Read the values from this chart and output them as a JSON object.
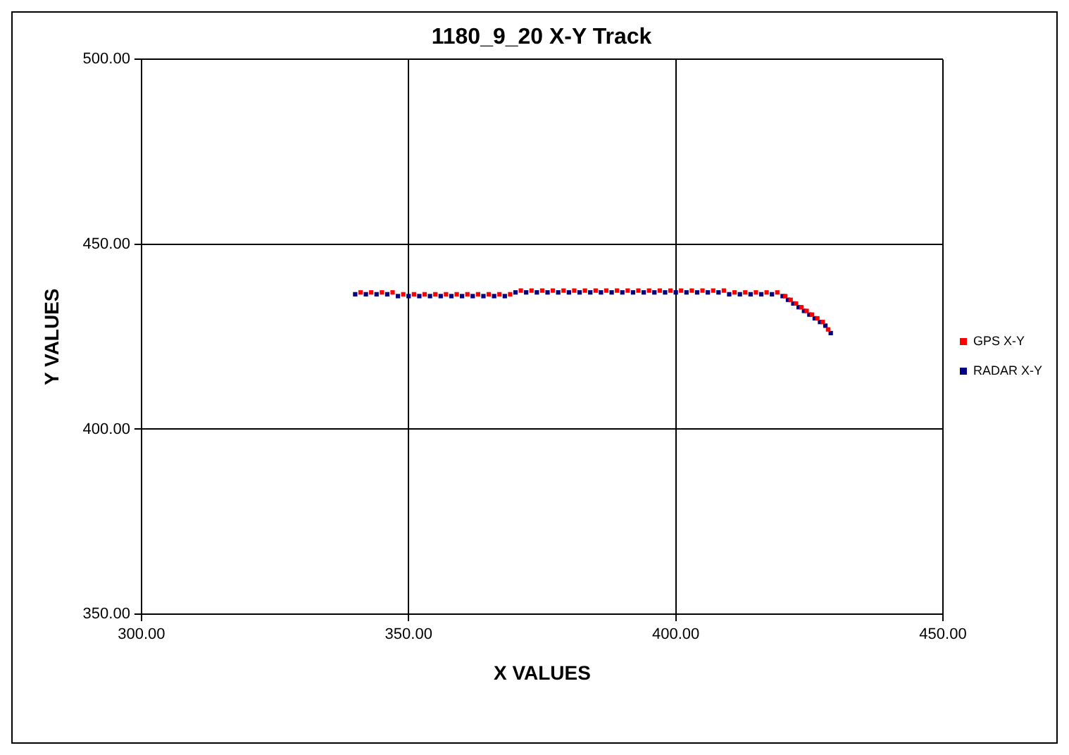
{
  "chart_data": {
    "type": "scatter",
    "title": "1180_9_20 X-Y Track",
    "xlabel": "X VALUES",
    "ylabel": "Y VALUES",
    "xlim": [
      300,
      450
    ],
    "ylim": [
      350,
      500
    ],
    "xticks": [
      {
        "value": 300,
        "label": "300.00"
      },
      {
        "value": 350,
        "label": "350.00"
      },
      {
        "value": 400,
        "label": "400.00"
      },
      {
        "value": 450,
        "label": "450.00"
      }
    ],
    "yticks": [
      {
        "value": 350,
        "label": "350.00"
      },
      {
        "value": 400,
        "label": "400.00"
      },
      {
        "value": 450,
        "label": "450.00"
      },
      {
        "value": 500,
        "label": "500.00"
      }
    ],
    "grid": true,
    "legend": "right",
    "marker": "square",
    "series": [
      {
        "name": "RADAR X-Y",
        "color": "#000080",
        "x": [
          340,
          342,
          344,
          346,
          348,
          350,
          352,
          354,
          356,
          358,
          360,
          362,
          364,
          366,
          368,
          370,
          372,
          374,
          376,
          378,
          380,
          382,
          384,
          386,
          388,
          390,
          392,
          394,
          396,
          398,
          400,
          402,
          404,
          406,
          408,
          410,
          412,
          414,
          416,
          418,
          420,
          421,
          422,
          423,
          424,
          425,
          426,
          427,
          428,
          429
        ],
        "values": [
          436.5,
          436.5,
          436.5,
          436.5,
          436,
          436,
          436,
          436,
          436,
          436,
          436,
          436,
          436,
          436,
          436,
          437,
          437,
          437,
          437,
          437,
          437,
          437,
          437,
          437,
          437,
          437,
          437,
          437,
          437,
          437,
          437,
          437,
          437,
          437,
          437,
          436.5,
          436.5,
          436.5,
          436.5,
          436.5,
          436,
          435,
          434,
          433,
          432,
          431,
          430,
          429,
          428,
          426
        ]
      },
      {
        "name": "GPS X-Y",
        "color": "#ff0000",
        "x": [
          341,
          343,
          345,
          347,
          349,
          351,
          353,
          355,
          357,
          359,
          361,
          363,
          365,
          367,
          369,
          371,
          373,
          375,
          377,
          379,
          381,
          383,
          385,
          387,
          389,
          391,
          393,
          395,
          397,
          399,
          401,
          403,
          405,
          407,
          409,
          411,
          413,
          415,
          417,
          419,
          420.5,
          421.5,
          422.5,
          423.5,
          424.5,
          425.5,
          426.5,
          427.5,
          428.5
        ],
        "values": [
          437,
          437,
          437,
          437,
          436.5,
          436.5,
          436.5,
          436.5,
          436.5,
          436.5,
          436.5,
          436.5,
          436.5,
          436.5,
          436.5,
          437.5,
          437.5,
          437.5,
          437.5,
          437.5,
          437.5,
          437.5,
          437.5,
          437.5,
          437.5,
          437.5,
          437.5,
          437.5,
          437.5,
          437.5,
          437.5,
          437.5,
          437.5,
          437.5,
          437.5,
          437,
          437,
          437,
          437,
          437,
          436,
          435,
          434,
          433,
          432,
          431,
          430,
          429,
          427
        ]
      }
    ]
  }
}
